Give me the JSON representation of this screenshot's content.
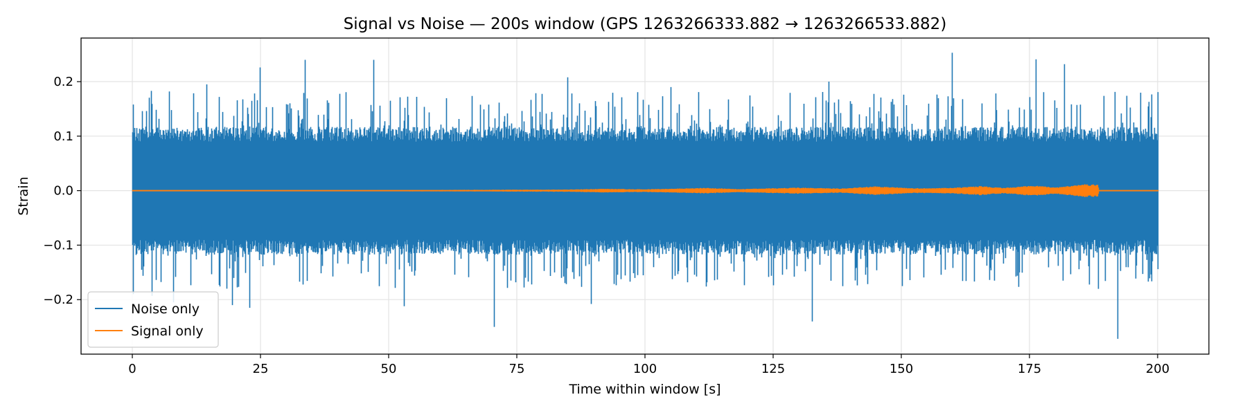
{
  "chart_data": {
    "type": "line",
    "title": "Signal vs Noise — 200s window (GPS 1263266333.882 → 1263266533.882)",
    "xlabel": "Time within window [s]",
    "ylabel": "Strain",
    "xlim": [
      -10,
      210
    ],
    "ylim": [
      -0.3,
      0.28
    ],
    "xticks": [
      0,
      25,
      50,
      75,
      100,
      125,
      150,
      175,
      200
    ],
    "xtick_labels": [
      "0",
      "25",
      "50",
      "75",
      "100",
      "125",
      "150",
      "175",
      "200"
    ],
    "yticks": [
      -0.2,
      -0.1,
      0.0,
      0.1,
      0.2
    ],
    "ytick_labels": [
      "−0.2",
      "−0.1",
      "0.0",
      "0.1",
      "0.2"
    ],
    "grid": true,
    "legend_position": "lower-left",
    "series": [
      {
        "name": "Noise only",
        "color": "#1f77b4",
        "x_range": [
          0,
          200
        ],
        "typical_amplitude": 0.125,
        "max": 0.253,
        "min": -0.272,
        "peaks": [
          {
            "x": 0.2,
            "y": 0.158
          },
          {
            "x": 0.2,
            "y": -0.19
          },
          {
            "x": 3.6,
            "y": 0.183
          },
          {
            "x": 3.8,
            "y": -0.193
          },
          {
            "x": 7.2,
            "y": 0.182
          },
          {
            "x": 8.0,
            "y": -0.205
          },
          {
            "x": 14.5,
            "y": 0.195
          },
          {
            "x": 19.5,
            "y": -0.21
          },
          {
            "x": 22.8,
            "y": -0.215
          },
          {
            "x": 24.8,
            "y": 0.226
          },
          {
            "x": 33.6,
            "y": 0.24
          },
          {
            "x": 47.0,
            "y": 0.24
          },
          {
            "x": 53.0,
            "y": -0.212
          },
          {
            "x": 70.5,
            "y": -0.25
          },
          {
            "x": 84.8,
            "y": 0.208
          },
          {
            "x": 89.5,
            "y": -0.208
          },
          {
            "x": 105.0,
            "y": 0.19
          },
          {
            "x": 132.6,
            "y": -0.24
          },
          {
            "x": 135.8,
            "y": 0.2
          },
          {
            "x": 159.8,
            "y": 0.253
          },
          {
            "x": 176.2,
            "y": 0.241
          },
          {
            "x": 181.7,
            "y": 0.232
          },
          {
            "x": 192.1,
            "y": -0.272
          },
          {
            "x": 198.2,
            "y": 0.163
          }
        ]
      },
      {
        "name": "Signal only",
        "color": "#ff7f0e",
        "x_range": [
          0,
          200
        ],
        "envelope": [
          {
            "x": 0,
            "a": 0.0007
          },
          {
            "x": 60,
            "a": 0.0012
          },
          {
            "x": 85,
            "a": 0.0018
          },
          {
            "x": 92,
            "a": 0.003
          },
          {
            "x": 100,
            "a": 0.0022
          },
          {
            "x": 112,
            "a": 0.0045
          },
          {
            "x": 118,
            "a": 0.0025
          },
          {
            "x": 130,
            "a": 0.005
          },
          {
            "x": 138,
            "a": 0.0035
          },
          {
            "x": 145,
            "a": 0.007
          },
          {
            "x": 152,
            "a": 0.004
          },
          {
            "x": 160,
            "a": 0.0045
          },
          {
            "x": 165,
            "a": 0.0075
          },
          {
            "x": 170,
            "a": 0.0045
          },
          {
            "x": 176,
            "a": 0.0085
          },
          {
            "x": 180,
            "a": 0.005
          },
          {
            "x": 186,
            "a": 0.0105
          },
          {
            "x": 188.3,
            "a": 0.0095
          },
          {
            "x": 188.5,
            "a": 0.0006
          },
          {
            "x": 200,
            "a": 0.0006
          }
        ]
      }
    ]
  }
}
